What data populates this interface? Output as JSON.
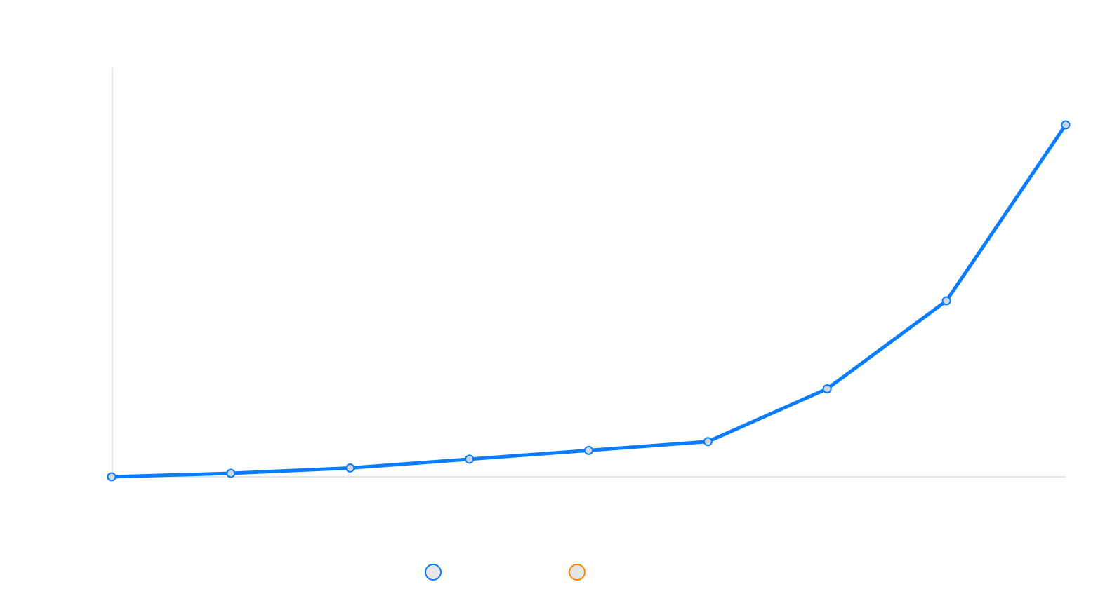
{
  "chart_data": {
    "type": "line",
    "x": [
      0,
      1,
      2,
      3,
      4,
      5,
      6,
      7,
      8
    ],
    "xlim": [
      0,
      8
    ],
    "ylim": [
      0,
      100
    ],
    "grid": false,
    "legend_placement": "bottom-center",
    "series": [
      {
        "color": "#0a7cff",
        "values": [
          0,
          1,
          2.5,
          5,
          7.5,
          10,
          25,
          50,
          100
        ]
      }
    ],
    "legend": [
      {
        "color": "#0a7cff",
        "fill": "#e6e6e6"
      },
      {
        "color": "#ff8800",
        "fill": "#e6e6e6"
      }
    ],
    "axis_color": "#dddddd",
    "point_fill": "#cfd8e6"
  }
}
